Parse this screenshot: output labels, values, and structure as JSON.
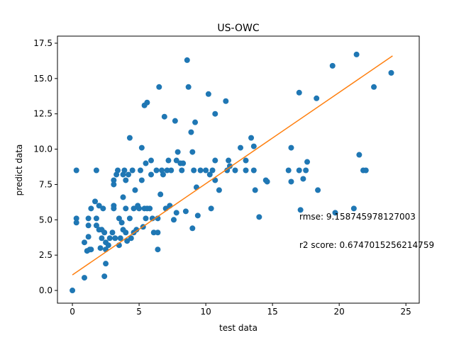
{
  "chart_data": {
    "type": "scatter",
    "title": "US-OWC",
    "x_label": "test data",
    "y_label": "predict data",
    "annotations": [
      "rmse: 9.158745978127003",
      "r2 score: 0.6747015256214759"
    ],
    "xlim": [
      -1.12,
      26.0
    ],
    "ylim": [
      -0.9,
      18.0
    ],
    "xticks": [
      0,
      5,
      10,
      15,
      20,
      25
    ],
    "yticks": [
      {
        "value": 0,
        "label": "0.0"
      },
      2.5,
      {
        "value": 5,
        "label": "5.0"
      },
      7.5,
      {
        "value": 10,
        "label": "10.0"
      },
      12.5,
      {
        "value": 15,
        "label": "15.0"
      },
      17.5
    ],
    "series": [
      {
        "type": "scatter",
        "color": "#1f77b4",
        "x": [
          0,
          0.3,
          0.3,
          0.3,
          0.9,
          0.9,
          1.1,
          1.2,
          1.2,
          1.2,
          1.3,
          1.4,
          1.4,
          1.7,
          1.8,
          1.8,
          1.8,
          2.0,
          2.0,
          2.1,
          2.2,
          2.2,
          2.3,
          2.4,
          2.4,
          2.5,
          2.5,
          2.5,
          2.7,
          2.8,
          3.0,
          3.1,
          3.1,
          3.1,
          3.1,
          3.2,
          3.3,
          3.4,
          3.5,
          3.5,
          3.6,
          3.7,
          3.8,
          3.8,
          3.8,
          3.9,
          4.0,
          4.0,
          4.0,
          4.1,
          4.2,
          4.3,
          4.3,
          4.4,
          4.5,
          4.6,
          4.6,
          4.7,
          4.8,
          4.9,
          5.0,
          5.1,
          5.2,
          5.2,
          5.3,
          5.4,
          5.4,
          5.5,
          5.5,
          5.6,
          5.6,
          5.8,
          5.9,
          5.9,
          6.0,
          6.1,
          6.3,
          6.4,
          6.4,
          6.4,
          6.5,
          6.6,
          6.7,
          6.8,
          6.9,
          7.0,
          7.1,
          7.2,
          7.3,
          7.4,
          7.6,
          7.7,
          7.8,
          7.8,
          7.9,
          8.1,
          8.2,
          8.3,
          8.5,
          8.6,
          8.7,
          8.9,
          9.0,
          9.0,
          9.1,
          9.2,
          9.3,
          9.4,
          9.6,
          10.0,
          10.2,
          10.3,
          10.4,
          10.5,
          10.7,
          10.7,
          10.7,
          11.0,
          11.5,
          11.6,
          11.7,
          11.8,
          12.2,
          12.6,
          13.0,
          13.0,
          13.4,
          13.6,
          13.6,
          13.7,
          14.0,
          14.5,
          14.6,
          16.2,
          16.4,
          16.4,
          17.0,
          17.1,
          17.3,
          17.5,
          17.6,
          17.0,
          18.3,
          18.4,
          19.5,
          19.7,
          21.1,
          21.3,
          21.5,
          21.8,
          22.0,
          22.6,
          23.9
        ],
        "values": [
          0,
          8.5,
          5.1,
          4.8,
          0.9,
          3.4,
          2.8,
          3.8,
          4.6,
          5.1,
          2.9,
          5.8,
          2.9,
          6.3,
          8.5,
          5.1,
          4.6,
          4.3,
          6.0,
          3.0,
          4.3,
          3.7,
          5.8,
          4.1,
          1.0,
          1.9,
          2.9,
          3.4,
          3.2,
          3.7,
          4.1,
          6.0,
          5.8,
          7.5,
          7.8,
          3.7,
          8.2,
          8.5,
          3.2,
          5.1,
          3.7,
          4.8,
          6.6,
          4.3,
          8.2,
          8.5,
          7.8,
          5.8,
          4.1,
          3.5,
          8.2,
          5.1,
          10.8,
          3.7,
          8.5,
          4.1,
          5.8,
          7.1,
          4.3,
          6.0,
          5.8,
          8.5,
          7.8,
          10.1,
          4.5,
          5.8,
          13.1,
          5.1,
          9.0,
          5.8,
          13.3,
          5.8,
          8.2,
          9.2,
          5.1,
          4.1,
          8.5,
          5.1,
          4.1,
          2.9,
          14.4,
          6.8,
          8.5,
          8.2,
          12.3,
          5.8,
          8.5,
          9.2,
          6.0,
          8.5,
          5.0,
          12.0,
          9.2,
          5.5,
          9.8,
          9.0,
          8.5,
          9.0,
          5.6,
          16.3,
          14.4,
          11.2,
          9.8,
          4.4,
          8.5,
          11.9,
          7.3,
          5.3,
          8.5,
          8.5,
          13.9,
          8.2,
          5.8,
          8.5,
          12.5,
          9.2,
          7.8,
          7.1,
          13.4,
          8.5,
          9.2,
          8.8,
          8.5,
          10.1,
          8.5,
          9.2,
          10.8,
          8.5,
          10.2,
          7.1,
          5.2,
          7.8,
          7.7,
          8.5,
          10.1,
          7.7,
          14.0,
          5.7,
          7.9,
          8.5,
          9.1,
          8.5,
          13.6,
          7.1,
          15.9,
          5.5,
          5.8,
          16.7,
          9.6,
          8.5,
          8.5,
          14.4,
          15.4
        ]
      },
      {
        "type": "line",
        "color": "#ff7f0e",
        "x": [
          0,
          24
        ],
        "values": [
          1.1,
          16.6
        ]
      }
    ]
  }
}
